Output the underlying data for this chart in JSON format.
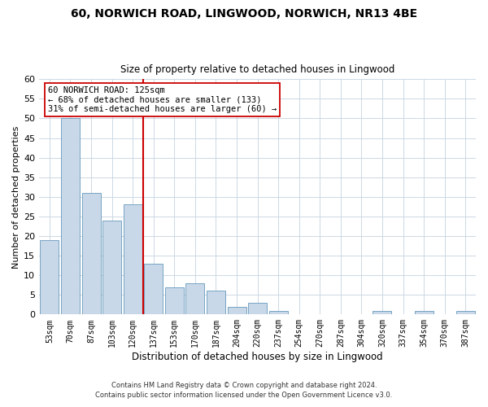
{
  "title1": "60, NORWICH ROAD, LINGWOOD, NORWICH, NR13 4BE",
  "title2": "Size of property relative to detached houses in Lingwood",
  "xlabel": "Distribution of detached houses by size in Lingwood",
  "ylabel": "Number of detached properties",
  "bar_labels": [
    "53sqm",
    "70sqm",
    "87sqm",
    "103sqm",
    "120sqm",
    "137sqm",
    "153sqm",
    "170sqm",
    "187sqm",
    "204sqm",
    "220sqm",
    "237sqm",
    "254sqm",
    "270sqm",
    "287sqm",
    "304sqm",
    "320sqm",
    "337sqm",
    "354sqm",
    "370sqm",
    "387sqm"
  ],
  "bar_values": [
    19,
    50,
    31,
    24,
    28,
    13,
    7,
    8,
    6,
    2,
    3,
    1,
    0,
    0,
    0,
    0,
    1,
    0,
    1,
    0,
    1
  ],
  "bar_color": "#c8d8e8",
  "bar_edgecolor": "#6699bb",
  "vline_x": 4.5,
  "vline_color": "#cc0000",
  "annotation_text": "60 NORWICH ROAD: 125sqm\n← 68% of detached houses are smaller (133)\n31% of semi-detached houses are larger (60) →",
  "annotation_box_edgecolor": "#cc0000",
  "annotation_box_facecolor": "#ffffff",
  "ylim": [
    0,
    60
  ],
  "yticks": [
    0,
    5,
    10,
    15,
    20,
    25,
    30,
    35,
    40,
    45,
    50,
    55,
    60
  ],
  "footnote1": "Contains HM Land Registry data © Crown copyright and database right 2024.",
  "footnote2": "Contains public sector information licensed under the Open Government Licence v3.0.",
  "bg_color": "#ffffff",
  "grid_color": "#ccd8e4"
}
